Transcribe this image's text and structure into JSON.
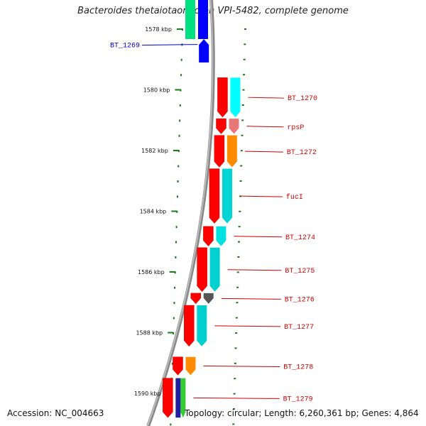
{
  "title": "Bacteroides thetaiotaomicron VPI-5482, complete genome",
  "accession_label": "Accession: NC_004663",
  "summary_label": "Topology: circular; Length: 6,260,361 bp; Genes: 4,864",
  "colors": {
    "backbone": "#888888",
    "tick": "#1a7a1a",
    "label_forward": "#cc0000",
    "label_reverse": "#0000cc"
  },
  "positions_kbp": [
    1578,
    1580,
    1582,
    1584,
    1586,
    1588,
    1590
  ],
  "position_labels": [
    "1578 kbp",
    "1580 kbp",
    "1582 kbp",
    "1584 kbp",
    "1586 kbp",
    "1588 kbp",
    "1590 kbp"
  ],
  "genes": [
    {
      "label": "BT_1269",
      "strand": "reverse",
      "start_kbp": 1578.33,
      "end_kbp": 1579.1,
      "cog_color": "#0000ff"
    },
    {
      "label": "BT_1270",
      "strand": "forward",
      "start_kbp": 1579.6,
      "end_kbp": 1580.9,
      "cog_color": "#00ffff"
    },
    {
      "label": "rpsP",
      "strand": "forward",
      "start_kbp": 1580.95,
      "end_kbp": 1581.45,
      "cog_color": "#e87878"
    },
    {
      "label": "BT_1272",
      "strand": "forward",
      "start_kbp": 1581.5,
      "end_kbp": 1582.55,
      "cog_color": "#ff8c00"
    },
    {
      "label": "fucI",
      "strand": "forward",
      "start_kbp": 1582.6,
      "end_kbp": 1584.4,
      "cog_color": "#00d4d4"
    },
    {
      "label": "BT_1274",
      "strand": "forward",
      "start_kbp": 1584.5,
      "end_kbp": 1585.15,
      "cog_color": "#00e0e0"
    },
    {
      "label": "BT_1275",
      "strand": "forward",
      "start_kbp": 1585.2,
      "end_kbp": 1586.65,
      "cog_color": "#00d0d0"
    },
    {
      "label": "BT_1276",
      "strand": "forward",
      "start_kbp": 1586.7,
      "end_kbp": 1587.05,
      "cog_color": "#555555"
    },
    {
      "label": "BT_1277",
      "strand": "forward",
      "start_kbp": 1587.1,
      "end_kbp": 1588.45,
      "cog_color": "#00d0d0"
    },
    {
      "label": "BT_1278",
      "strand": "forward",
      "start_kbp": 1588.8,
      "end_kbp": 1589.4,
      "cog_color": "#ff8c00"
    },
    {
      "label": "BT_1279",
      "strand": "forward",
      "start_kbp": 1589.5,
      "end_kbp": 1590.8,
      "cog_color": "#2020a0",
      "cog_color_2": "#33cc33"
    }
  ],
  "partial_genes_top": [
    {
      "strand": "forward",
      "color": "#00e080"
    },
    {
      "strand": "reverse",
      "color": "#0000ff"
    }
  ]
}
